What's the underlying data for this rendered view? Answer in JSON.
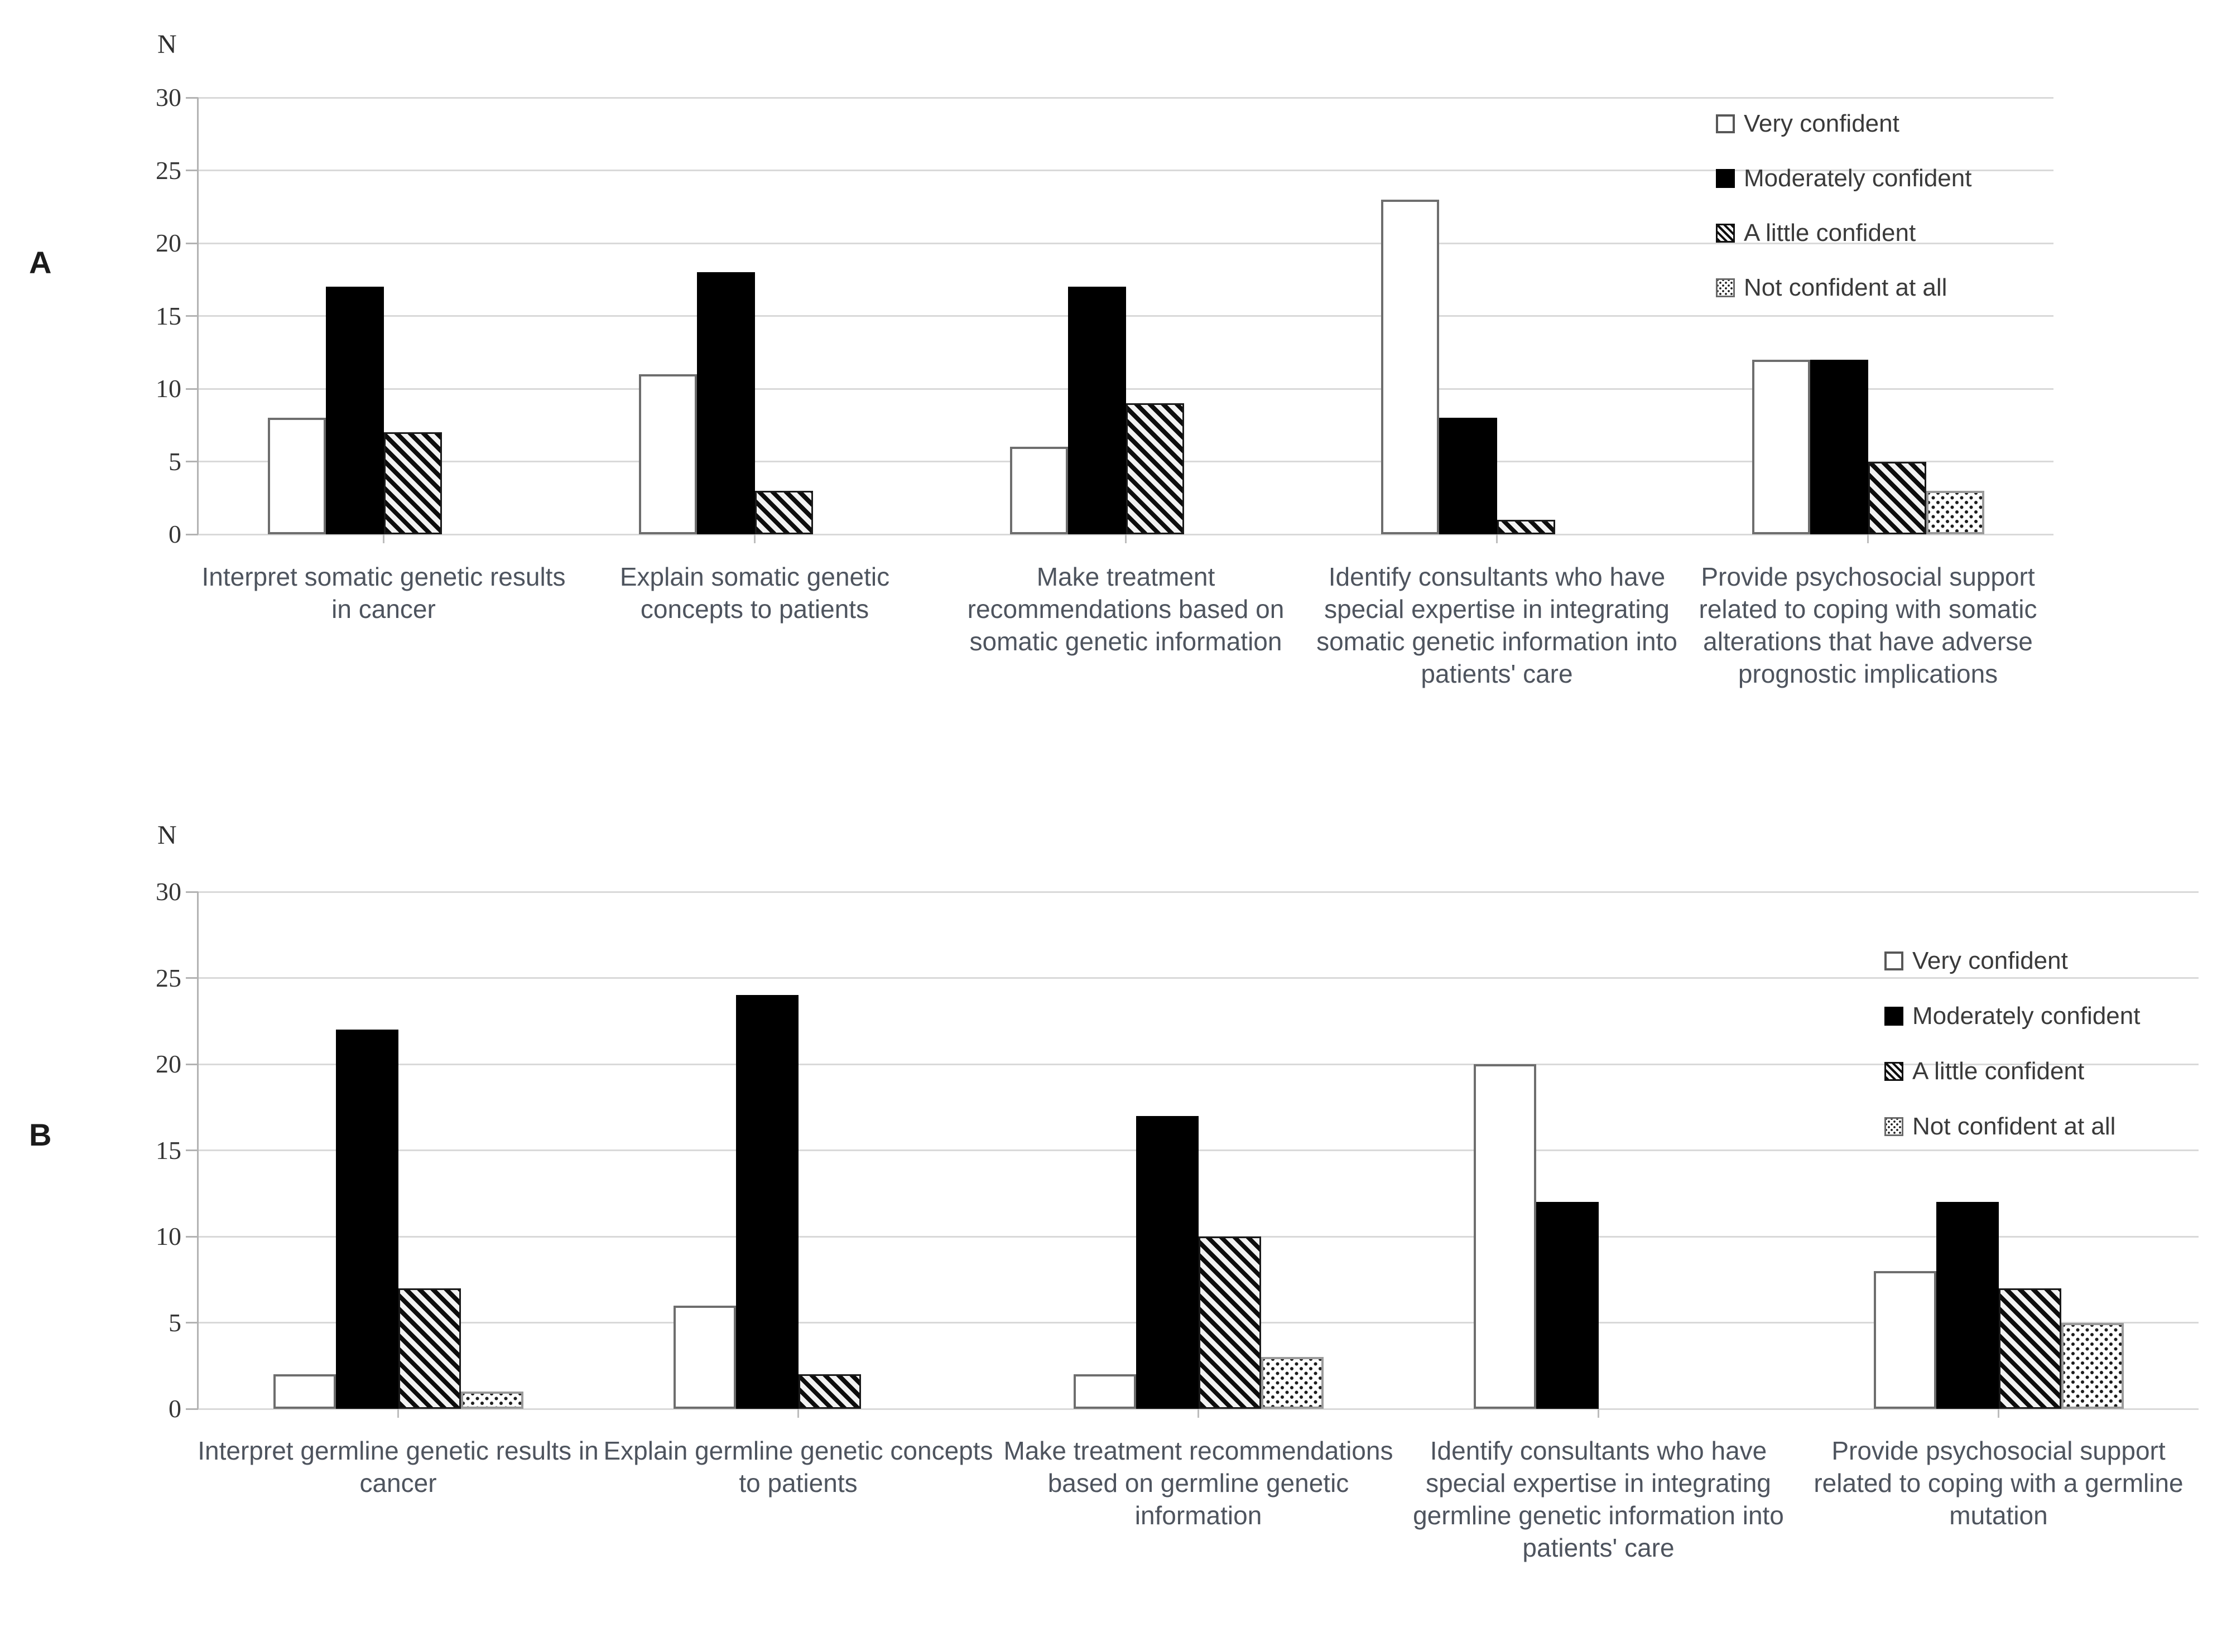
{
  "figure": {
    "background": "#ffffff",
    "text_color_categories": "#4e545e",
    "gridline_color": "#d9d9d9",
    "panels": [
      "A",
      "B"
    ]
  },
  "chart_data": [
    {
      "type": "bar",
      "panel_label": "A",
      "ylabel": "N",
      "ylim": [
        0,
        30
      ],
      "yticks": [
        0,
        5,
        10,
        15,
        20,
        25,
        30
      ],
      "grid": true,
      "legend_position": "top-right",
      "categories": [
        "Interpret somatic genetic results in cancer",
        "Explain somatic genetic concepts to patients",
        "Make treatment recommendations based on somatic genetic information",
        "Identify consultants who have special expertise in integrating somatic genetic information into patients' care",
        "Provide psychosocial support related to coping with somatic alterations that have adverse prognostic implications"
      ],
      "series": [
        {
          "name": "Very confident",
          "pattern": "white",
          "values": [
            8,
            11,
            6,
            23,
            12
          ]
        },
        {
          "name": "Moderately confident",
          "pattern": "black",
          "values": [
            17,
            18,
            17,
            8,
            12
          ]
        },
        {
          "name": "A little confident",
          "pattern": "hatch",
          "values": [
            7,
            3,
            9,
            1,
            5
          ]
        },
        {
          "name": "Not confident at all",
          "pattern": "dots",
          "values": [
            0,
            0,
            0,
            0,
            3
          ]
        }
      ]
    },
    {
      "type": "bar",
      "panel_label": "B",
      "ylabel": "N",
      "ylim": [
        0,
        30
      ],
      "yticks": [
        0,
        5,
        10,
        15,
        20,
        25,
        30
      ],
      "grid": true,
      "legend_position": "top-right",
      "categories": [
        "Interpret germline genetic results in cancer",
        "Explain germline genetic concepts to patients",
        "Make treatment recommendations based on germline genetic information",
        "Identify consultants who have special expertise in integrating germline genetic information into patients' care",
        "Provide psychosocial support related to coping with a germline mutation"
      ],
      "series": [
        {
          "name": "Very confident",
          "pattern": "white",
          "values": [
            2,
            6,
            2,
            20,
            8
          ]
        },
        {
          "name": "Moderately confident",
          "pattern": "black",
          "values": [
            22,
            24,
            17,
            12,
            12
          ]
        },
        {
          "name": "A little confident",
          "pattern": "hatch",
          "values": [
            7,
            2,
            10,
            0,
            7
          ]
        },
        {
          "name": "Not confident at all",
          "pattern": "dots",
          "values": [
            1,
            0,
            3,
            0,
            5
          ]
        }
      ]
    }
  ]
}
